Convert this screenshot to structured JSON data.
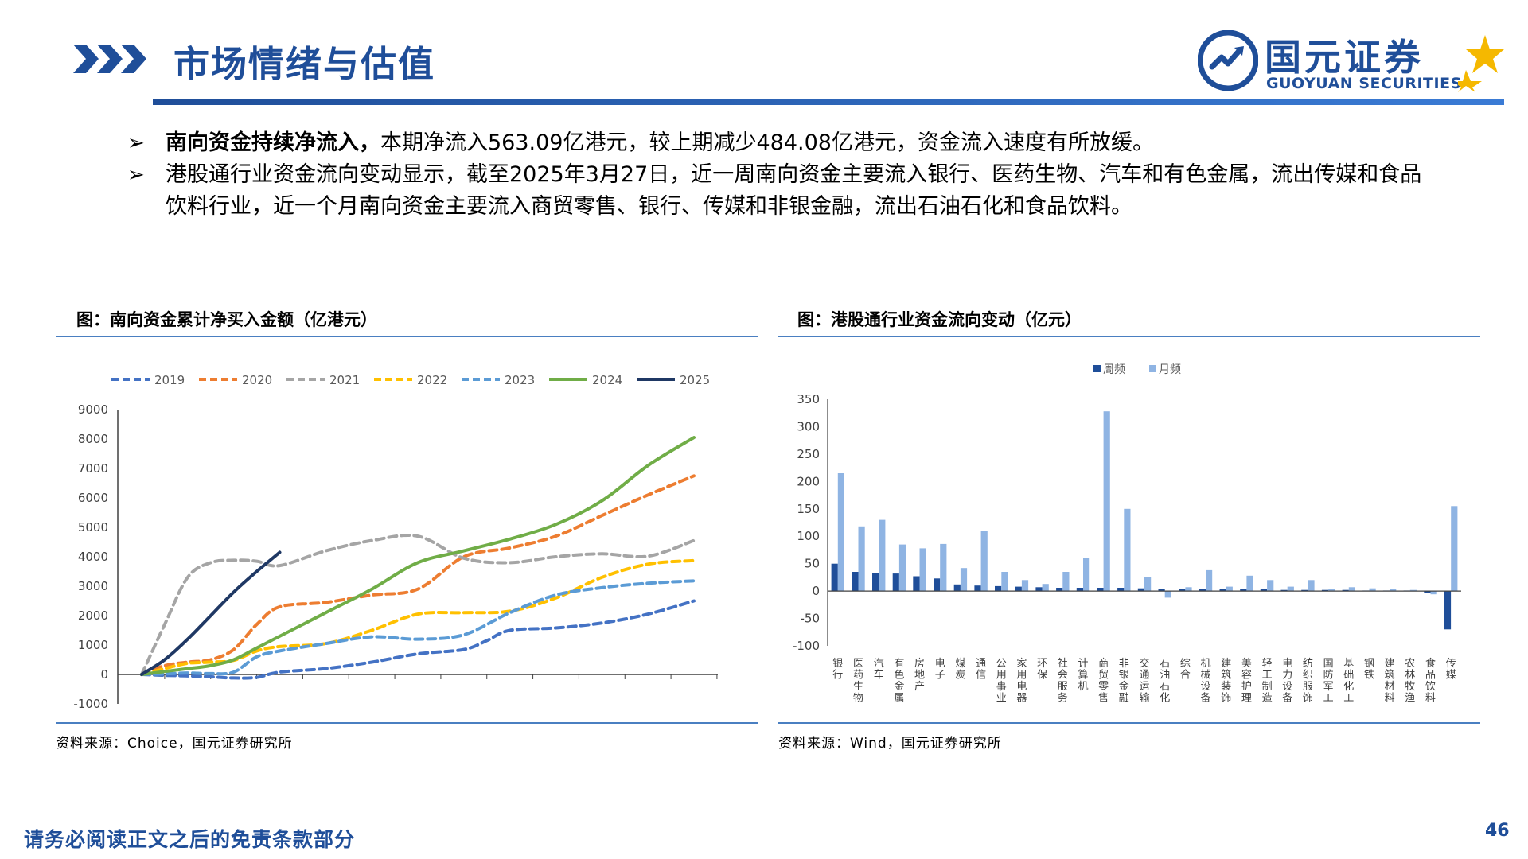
{
  "header": {
    "title": "市场情绪与估值",
    "logo_name": "国元证券",
    "logo_en": "GUOYUAN SECURITIES"
  },
  "bullets": [
    {
      "marker": "➢",
      "bold": "南向资金持续净流入，",
      "text": "本期净流入563.09亿港元，较上期减少484.08亿港元，资金流入速度有所放缓。"
    },
    {
      "marker": "➢",
      "bold": "",
      "text": "港股通行业资金流向变动显示，截至2025年3月27日，近一周南向资金主要流入银行、医药生物、汽车和有色金属，流出传媒和食品饮料行业，近一个月南向资金主要流入商贸零售、银行、传媒和非银金融，流出石油石化和食品饮料。"
    }
  ],
  "left_panel": {
    "title": "图：南向资金累计净买入金额（亿港元）",
    "source": "资料来源：Choice，国元证券研究所"
  },
  "right_panel": {
    "title": "图：港股通行业资金流向变动（亿元）",
    "source": "资料来源：Wind，国元证券研究所"
  },
  "footer": {
    "note": "请务必阅读正文之后的免责条款部分",
    "page": "46"
  },
  "colors": {
    "brand_blue": "#1f4e99",
    "accent_gold": "#f5b800"
  },
  "chart_data": [
    {
      "type": "line",
      "title": "南向资金累计净买入金额（亿港元）",
      "xlabel": "",
      "ylabel": "",
      "x": [
        0,
        1,
        2,
        3,
        4,
        5,
        6,
        7,
        8,
        9,
        10,
        11,
        12
      ],
      "xlim": [
        0,
        12
      ],
      "ylim": [
        -1000,
        9000
      ],
      "yticks": [
        -1000,
        0,
        1000,
        2000,
        3000,
        4000,
        5000,
        6000,
        7000,
        8000,
        9000
      ],
      "legend_position": "top",
      "series": [
        {
          "name": "2019",
          "color": "#4472c4",
          "dash": "dashed",
          "x": [
            0,
            0.5,
            1,
            1.5,
            2,
            2.5,
            3,
            4,
            5,
            6,
            7,
            7.5,
            8,
            9,
            10,
            11,
            12
          ],
          "values": [
            0,
            -30,
            -50,
            -80,
            -120,
            -100,
            80,
            200,
            420,
            700,
            850,
            1150,
            1500,
            1580,
            1750,
            2050,
            2500
          ]
        },
        {
          "name": "2020",
          "color": "#ed7d31",
          "dash": "dashed",
          "x": [
            0,
            0.5,
            1,
            1.5,
            2,
            2.5,
            3,
            4,
            5,
            6,
            7,
            8,
            9,
            10,
            11,
            12
          ],
          "values": [
            0,
            300,
            420,
            500,
            850,
            1700,
            2300,
            2450,
            2700,
            2900,
            4000,
            4300,
            4700,
            5400,
            6100,
            6750
          ]
        },
        {
          "name": "2021",
          "color": "#a5a5a5",
          "dash": "dashed",
          "x": [
            0,
            0.5,
            1,
            1.5,
            2,
            2.5,
            3,
            4,
            5,
            6,
            7,
            8,
            9,
            10,
            11,
            12
          ],
          "values": [
            0,
            1700,
            3300,
            3800,
            3880,
            3850,
            3700,
            4200,
            4550,
            4700,
            3950,
            3800,
            4000,
            4100,
            4020,
            4550
          ]
        },
        {
          "name": "2022",
          "color": "#ffc000",
          "dash": "dashed",
          "x": [
            0,
            0.5,
            1,
            1.5,
            2,
            2.5,
            3,
            4,
            5,
            6,
            7,
            8,
            9,
            10,
            11,
            12
          ],
          "values": [
            0,
            200,
            380,
            420,
            480,
            800,
            950,
            1050,
            1500,
            2050,
            2100,
            2150,
            2600,
            3300,
            3750,
            3870
          ]
        },
        {
          "name": "2023",
          "color": "#5b9bd5",
          "dash": "dashed",
          "x": [
            0,
            0.5,
            1,
            1.5,
            2,
            2.5,
            3,
            4,
            5,
            6,
            7,
            8,
            9,
            10,
            11,
            12
          ],
          "values": [
            0,
            20,
            50,
            30,
            80,
            600,
            800,
            1050,
            1280,
            1200,
            1350,
            2100,
            2700,
            2950,
            3100,
            3180
          ]
        },
        {
          "name": "2024",
          "color": "#70ad47",
          "dash": "solid",
          "x": [
            0,
            0.5,
            1,
            1.5,
            2,
            2.5,
            3,
            4,
            5,
            6,
            7,
            8,
            9,
            10,
            11,
            12
          ],
          "values": [
            0,
            100,
            200,
            300,
            500,
            900,
            1300,
            2100,
            2900,
            3800,
            4200,
            4600,
            5100,
            5900,
            7100,
            8050
          ]
        },
        {
          "name": "2025",
          "color": "#1f3864",
          "dash": "solid",
          "x": [
            0,
            0.5,
            1,
            1.5,
            2,
            2.5,
            3
          ],
          "values": [
            0,
            500,
            1200,
            2000,
            2800,
            3500,
            4150
          ]
        }
      ]
    },
    {
      "type": "bar",
      "title": "港股通行业资金流向变动（亿元）",
      "xlabel": "",
      "ylabel": "",
      "ylim": [
        -100,
        350
      ],
      "yticks": [
        -100,
        -50,
        0,
        50,
        100,
        150,
        200,
        250,
        300,
        350
      ],
      "legend_position": "top",
      "categories": [
        "银行",
        "医药生物",
        "汽车",
        "有色金属",
        "房地产",
        "电子",
        "煤炭",
        "通信",
        "公用事业",
        "家用电器",
        "环保",
        "社会服务",
        "计算机",
        "商贸零售",
        "非银金融",
        "交通运输",
        "石油石化",
        "综合",
        "机械设备",
        "建筑装饰",
        "美容护理",
        "轻工制造",
        "电力设备",
        "纺织服饰",
        "国防军工",
        "基础化工",
        "钢铁",
        "建筑材料",
        "农林牧渔",
        "食品饮料",
        "传媒"
      ],
      "series": [
        {
          "name": "周频",
          "color": "#1f4e99",
          "values": [
            50,
            35,
            33,
            32,
            27,
            23,
            12,
            10,
            9,
            8,
            7,
            6,
            6,
            6,
            6,
            5,
            4,
            3,
            3,
            3,
            3,
            3,
            2,
            2,
            2,
            2,
            1,
            1,
            1,
            -3,
            -70
          ]
        },
        {
          "name": "月频",
          "color": "#8fb4e3",
          "values": [
            215,
            118,
            130,
            85,
            78,
            86,
            42,
            110,
            35,
            20,
            13,
            35,
            60,
            328,
            150,
            26,
            -12,
            7,
            38,
            8,
            28,
            20,
            8,
            20,
            3,
            7,
            5,
            3,
            2,
            -6,
            155
          ]
        }
      ]
    }
  ]
}
